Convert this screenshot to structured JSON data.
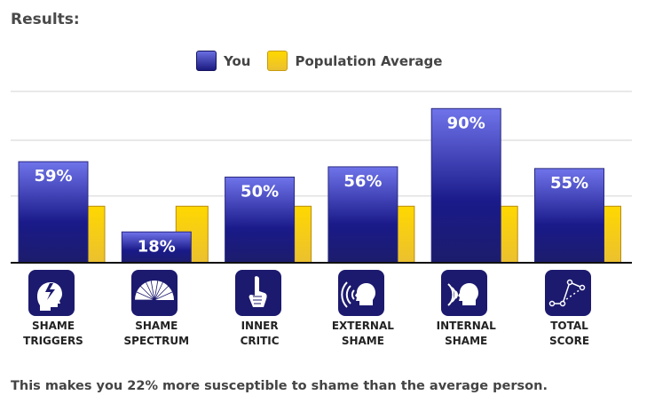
{
  "title": "Results:",
  "footer": "This makes you 22% more susceptible to shame than the average person.",
  "colors": {
    "you_top": "#6e72e6",
    "you_bottom": "#1a1a80",
    "avg_top": "#ffd800",
    "avg_bottom": "#ebc030",
    "icon_bg": "#1c1a6e"
  },
  "chart_data": {
    "type": "bar",
    "title": "",
    "xlabel": "",
    "ylabel": "",
    "ylim": [
      0,
      100
    ],
    "gridlines": [
      39,
      71.5,
      100
    ],
    "legend_position": "top-center",
    "categories": [
      {
        "line1": "SHAME",
        "line2": "TRIGGERS",
        "icon": "head-lightning-icon"
      },
      {
        "line1": "SHAME",
        "line2": "SPECTRUM",
        "icon": "fan-spectrum-icon"
      },
      {
        "line1": "INNER",
        "line2": "CRITIC",
        "icon": "finger-hand-icon"
      },
      {
        "line1": "EXTERNAL",
        "line2": "SHAME",
        "icon": "sound-in-head-icon"
      },
      {
        "line1": "INTERNAL",
        "line2": "SHAME",
        "icon": "sound-out-head-icon"
      },
      {
        "line1": "TOTAL",
        "line2": "SCORE",
        "icon": "line-graph-icon"
      }
    ],
    "series": [
      {
        "name": "You",
        "values": [
          59,
          18,
          50,
          56,
          90,
          55
        ],
        "labels": [
          "59%",
          "18%",
          "50%",
          "56%",
          "90%",
          "55%"
        ]
      },
      {
        "name": "Population Average",
        "values": [
          33,
          33,
          33,
          33,
          33,
          33
        ]
      }
    ]
  }
}
